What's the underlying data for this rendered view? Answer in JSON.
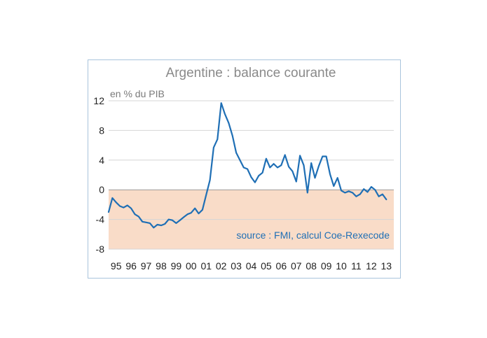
{
  "chart_data": {
    "type": "line",
    "title": "Argentine : balance courante",
    "ylabel": "en % du PIB",
    "xlabel": "",
    "source_note": "source : FMI, calcul Coe-Rexecode",
    "ylim": [
      -8,
      12
    ],
    "yticks": [
      12,
      8,
      4,
      0,
      -4,
      -8
    ],
    "xlim": [
      1995,
      2014
    ],
    "x_tick_labels": [
      "95",
      "96",
      "97",
      "98",
      "99",
      "00",
      "01",
      "02",
      "03",
      "04",
      "05",
      "06",
      "07",
      "08",
      "09",
      "10",
      "11",
      "12",
      "13"
    ],
    "grid": true,
    "negative_zone_shaded": true,
    "colors": {
      "line": "#1f6fb5",
      "negative_zone": "#f9dcc8",
      "frame": "#a9c4dc"
    },
    "series": [
      {
        "values": [
          [
            1995.0,
            -3.0
          ],
          [
            1995.25,
            -1.1
          ],
          [
            1995.5,
            -1.7
          ],
          [
            1995.75,
            -2.2
          ],
          [
            1996.0,
            -2.4
          ],
          [
            1996.25,
            -2.1
          ],
          [
            1996.5,
            -2.5
          ],
          [
            1996.75,
            -3.3
          ],
          [
            1997.0,
            -3.6
          ],
          [
            1997.25,
            -4.3
          ],
          [
            1997.5,
            -4.4
          ],
          [
            1997.75,
            -4.5
          ],
          [
            1998.0,
            -5.1
          ],
          [
            1998.25,
            -4.7
          ],
          [
            1998.5,
            -4.8
          ],
          [
            1998.75,
            -4.6
          ],
          [
            1999.0,
            -4.0
          ],
          [
            1999.25,
            -4.1
          ],
          [
            1999.5,
            -4.5
          ],
          [
            1999.75,
            -4.1
          ],
          [
            2000.0,
            -3.7
          ],
          [
            2000.25,
            -3.3
          ],
          [
            2000.5,
            -3.1
          ],
          [
            2000.75,
            -2.5
          ],
          [
            2001.0,
            -3.2
          ],
          [
            2001.25,
            -2.7
          ],
          [
            2001.5,
            -0.7
          ],
          [
            2001.75,
            1.3
          ],
          [
            2002.0,
            5.7
          ],
          [
            2002.25,
            6.8
          ],
          [
            2002.5,
            11.7
          ],
          [
            2002.75,
            10.2
          ],
          [
            2003.0,
            9.0
          ],
          [
            2003.25,
            7.3
          ],
          [
            2003.5,
            5.0
          ],
          [
            2003.75,
            4.0
          ],
          [
            2004.0,
            3.0
          ],
          [
            2004.25,
            2.8
          ],
          [
            2004.5,
            1.7
          ],
          [
            2004.75,
            1.0
          ],
          [
            2005.0,
            1.9
          ],
          [
            2005.25,
            2.3
          ],
          [
            2005.5,
            4.2
          ],
          [
            2005.75,
            3.0
          ],
          [
            2006.0,
            3.5
          ],
          [
            2006.25,
            3.0
          ],
          [
            2006.5,
            3.3
          ],
          [
            2006.75,
            4.7
          ],
          [
            2007.0,
            3.1
          ],
          [
            2007.25,
            2.5
          ],
          [
            2007.5,
            1.1
          ],
          [
            2007.75,
            4.6
          ],
          [
            2008.0,
            3.3
          ],
          [
            2008.25,
            -0.4
          ],
          [
            2008.5,
            3.6
          ],
          [
            2008.75,
            1.6
          ],
          [
            2009.0,
            3.2
          ],
          [
            2009.25,
            4.5
          ],
          [
            2009.5,
            4.5
          ],
          [
            2009.75,
            2.1
          ],
          [
            2010.0,
            0.5
          ],
          [
            2010.25,
            1.6
          ],
          [
            2010.5,
            -0.1
          ],
          [
            2010.75,
            -0.4
          ],
          [
            2011.0,
            -0.2
          ],
          [
            2011.25,
            -0.4
          ],
          [
            2011.5,
            -0.9
          ],
          [
            2011.75,
            -0.6
          ],
          [
            2012.0,
            0.1
          ],
          [
            2012.25,
            -0.3
          ],
          [
            2012.5,
            0.4
          ],
          [
            2012.75,
            0.0
          ],
          [
            2013.0,
            -0.9
          ],
          [
            2013.25,
            -0.6
          ],
          [
            2013.5,
            -1.3
          ]
        ]
      }
    ]
  }
}
